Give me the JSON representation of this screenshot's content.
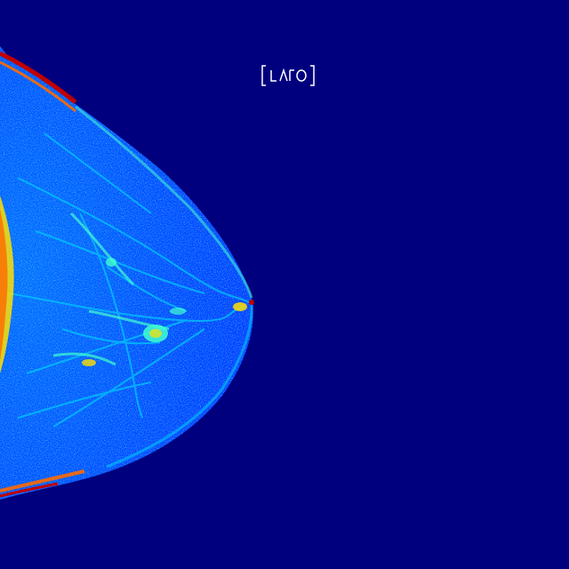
{
  "image": {
    "subject": "mammogram-false-color",
    "orientation_marker": "LMLO",
    "colors": {
      "background": "#00007f",
      "tissue_base": "#0040ff",
      "tissue_mid": "#0080ff",
      "fibroglandular": "#00c8ff",
      "dense_cyan": "#40ffd0",
      "dense_yellow": "#ffe000",
      "hot_orange": "#ff6a00",
      "hot_red": "#c00000",
      "marker": "#ffffff"
    }
  }
}
